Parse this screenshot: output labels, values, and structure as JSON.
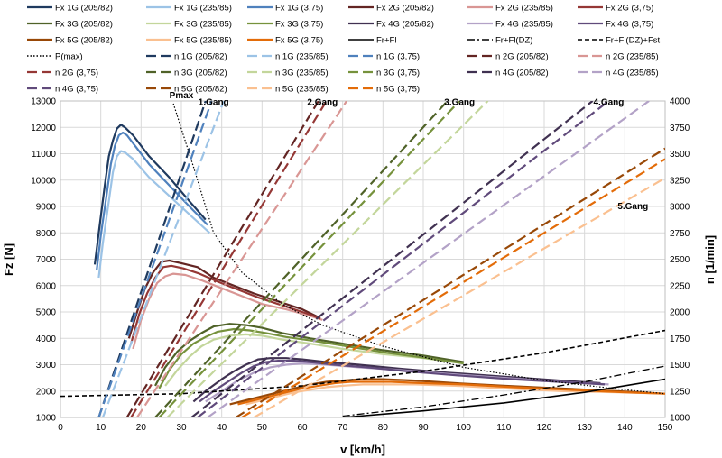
{
  "chart_data": {
    "type": "line",
    "title": "",
    "xlabel": "v [km/h]",
    "ylabel": "Fz [N]",
    "y2label": "n [1/min]",
    "xlim": [
      0,
      150
    ],
    "ylim": [
      1000,
      13000
    ],
    "y2lim": [
      1000,
      4000
    ],
    "xticks": [
      0,
      10,
      20,
      30,
      40,
      50,
      60,
      70,
      80,
      90,
      100,
      110,
      120,
      130,
      140,
      150
    ],
    "yticks": [
      1000,
      2000,
      3000,
      4000,
      5000,
      6000,
      7000,
      8000,
      9000,
      10000,
      11000,
      12000,
      13000
    ],
    "y2ticks": [
      1000,
      1250,
      1500,
      1750,
      2000,
      2250,
      2500,
      2750,
      3000,
      3250,
      3500,
      3750,
      4000
    ],
    "grid": true,
    "legend_position": "top",
    "annotations": [
      {
        "text": "Pmax",
        "x": 30,
        "y": 13100
      },
      {
        "text": "1.Gang",
        "x": 38,
        "y": 12850
      },
      {
        "text": "2.Gang",
        "x": 65,
        "y": 12850
      },
      {
        "text": "3.Gang",
        "x": 99,
        "y": 12850
      },
      {
        "text": "4.Gang",
        "x": 136,
        "y": 12850
      },
      {
        "text": "5.Gang",
        "x": 142,
        "y": 8900
      }
    ],
    "series": [
      {
        "name": "Fx 1G (205/82)",
        "axis": "left",
        "color": "#1f3a5f",
        "dash": "solid",
        "width": 2.2,
        "x": [
          8.5,
          9.5,
          11,
          12,
          13,
          14,
          15,
          16,
          18,
          22,
          27,
          32,
          36
        ],
        "y": [
          6800,
          8000,
          9800,
          10900,
          11500,
          11950,
          12100,
          12000,
          11700,
          10900,
          10100,
          9200,
          8500
        ]
      },
      {
        "name": "Fx 1G (235/85)",
        "axis": "left",
        "color": "#9cc3e6",
        "dash": "solid",
        "width": 2.2,
        "x": [
          9.5,
          10.5,
          12,
          13,
          14,
          15,
          16,
          18,
          22,
          27,
          32,
          37
        ],
        "y": [
          6300,
          7600,
          9200,
          10300,
          10900,
          11100,
          11050,
          10800,
          10100,
          9400,
          8700,
          8000
        ]
      },
      {
        "name": "Fx 1G (3,75)",
        "axis": "left",
        "color": "#4f81bd",
        "dash": "solid",
        "width": 2.2,
        "x": [
          9,
          10,
          11.5,
          12.5,
          13.5,
          14.5,
          15.5,
          16.5,
          18,
          22,
          27,
          32,
          36.5
        ],
        "y": [
          6600,
          7900,
          9500,
          10600,
          11300,
          11700,
          11800,
          11700,
          11400,
          10600,
          9800,
          9000,
          8300
        ]
      },
      {
        "name": "Fx 2G (205/82)",
        "axis": "left",
        "color": "#632523",
        "dash": "solid",
        "width": 2.2,
        "x": [
          17,
          19,
          21,
          23,
          25,
          27,
          30,
          34,
          38,
          43,
          48,
          54,
          60,
          64
        ],
        "y": [
          4000,
          5000,
          5900,
          6500,
          6900,
          6950,
          6850,
          6700,
          6300,
          6000,
          5700,
          5400,
          5100,
          4800
        ]
      },
      {
        "name": "Fx 2G (235/85)",
        "axis": "left",
        "color": "#d99694",
        "dash": "solid",
        "width": 2.2,
        "x": [
          18,
          20,
          22,
          24,
          26,
          28,
          31,
          35,
          40,
          45,
          50,
          56,
          62,
          65
        ],
        "y": [
          3600,
          4700,
          5500,
          6100,
          6350,
          6450,
          6400,
          6200,
          5900,
          5600,
          5300,
          5100,
          4850,
          4700
        ]
      },
      {
        "name": "Fx 2G (3,75)",
        "axis": "left",
        "color": "#953735",
        "dash": "solid",
        "width": 2.2,
        "x": [
          17.5,
          19.5,
          21.5,
          23.5,
          25.5,
          27.5,
          30.5,
          34.5,
          39,
          44,
          49,
          55,
          61,
          64.5
        ],
        "y": [
          3800,
          4900,
          5700,
          6300,
          6700,
          6750,
          6650,
          6450,
          6150,
          5850,
          5550,
          5250,
          4950,
          4750
        ]
      },
      {
        "name": "Fx 3G (205/82)",
        "axis": "left",
        "color": "#4f6228",
        "dash": "solid",
        "width": 2.2,
        "x": [
          23.5,
          26,
          29,
          32,
          35,
          38,
          42,
          46,
          50,
          55,
          62,
          70,
          80,
          90,
          100
        ],
        "y": [
          2200,
          2900,
          3500,
          3900,
          4200,
          4450,
          4550,
          4500,
          4400,
          4200,
          4000,
          3800,
          3550,
          3350,
          3100
        ]
      },
      {
        "name": "Fx 3G (235/85)",
        "axis": "left",
        "color": "#c3d69b",
        "dash": "solid",
        "width": 2.2,
        "x": [
          26,
          29,
          32,
          35,
          38,
          42,
          46,
          50,
          55,
          62,
          70,
          80,
          90,
          100
        ],
        "y": [
          2200,
          2800,
          3300,
          3700,
          3950,
          4100,
          4150,
          4100,
          3950,
          3800,
          3600,
          3400,
          3250,
          3050
        ]
      },
      {
        "name": "Fx 3G (3,75)",
        "axis": "left",
        "color": "#76923c",
        "dash": "solid",
        "width": 2.2,
        "x": [
          24.5,
          27,
          30,
          33,
          36,
          39,
          43,
          47,
          51,
          56,
          63,
          71,
          81,
          91,
          100
        ],
        "y": [
          2100,
          2800,
          3400,
          3800,
          4050,
          4250,
          4350,
          4300,
          4200,
          4050,
          3900,
          3700,
          3450,
          3250,
          3050
        ]
      },
      {
        "name": "Fx 4G (205/82)",
        "axis": "left",
        "color": "#403151",
        "dash": "solid",
        "width": 2.2,
        "x": [
          33,
          36,
          40,
          43,
          46,
          49,
          52,
          56,
          60,
          66,
          74,
          84,
          96,
          110,
          124,
          134
        ],
        "y": [
          1600,
          2000,
          2450,
          2750,
          3000,
          3200,
          3250,
          3250,
          3200,
          3100,
          3000,
          2850,
          2700,
          2550,
          2400,
          2300
        ]
      },
      {
        "name": "Fx 4G (235/85)",
        "axis": "left",
        "color": "#b3a2c7",
        "dash": "solid",
        "width": 2.2,
        "x": [
          36,
          40,
          44,
          48,
          52,
          56,
          60,
          66,
          74,
          84,
          96,
          110,
          124,
          136
        ],
        "y": [
          1600,
          2000,
          2400,
          2700,
          2900,
          3000,
          3050,
          3000,
          2900,
          2800,
          2650,
          2500,
          2350,
          2250
        ]
      },
      {
        "name": "Fx 4G (3,75)",
        "axis": "left",
        "color": "#604a7b",
        "dash": "solid",
        "width": 2.2,
        "x": [
          34.5,
          38,
          42,
          45,
          48,
          51,
          54,
          58,
          62,
          68,
          76,
          86,
          98,
          112,
          126,
          135
        ],
        "y": [
          1600,
          2000,
          2400,
          2700,
          2950,
          3100,
          3150,
          3150,
          3100,
          3000,
          2900,
          2750,
          2600,
          2450,
          2330,
          2250
        ]
      },
      {
        "name": "Fx 5G (205/82)",
        "axis": "left",
        "color": "#984807",
        "dash": "solid",
        "width": 2.2,
        "x": [
          42,
          46,
          50,
          54,
          58,
          62,
          66,
          70,
          75,
          80,
          88,
          98,
          110,
          124,
          138,
          150
        ],
        "y": [
          1500,
          1650,
          1800,
          1950,
          2100,
          2250,
          2350,
          2400,
          2450,
          2450,
          2400,
          2300,
          2200,
          2100,
          2000,
          1900
        ]
      },
      {
        "name": "Fx 5G (235/85)",
        "axis": "left",
        "color": "#fac090",
        "dash": "solid",
        "width": 2.2,
        "x": [
          46,
          50,
          54,
          58,
          62,
          66,
          70,
          75,
          80,
          88,
          98,
          110,
          124,
          138,
          150
        ],
        "y": [
          1500,
          1650,
          1800,
          1950,
          2050,
          2150,
          2200,
          2250,
          2250,
          2250,
          2200,
          2100,
          2000,
          1950,
          1900
        ]
      },
      {
        "name": "Fx 5G (3,75)",
        "axis": "left",
        "color": "#e36c09",
        "dash": "solid",
        "width": 2.2,
        "x": [
          44,
          48,
          52,
          56,
          60,
          64,
          68,
          72,
          77,
          82,
          90,
          100,
          112,
          126,
          140,
          150
        ],
        "y": [
          1500,
          1650,
          1800,
          1950,
          2100,
          2200,
          2300,
          2350,
          2350,
          2350,
          2300,
          2250,
          2150,
          2050,
          1950,
          1900
        ]
      },
      {
        "name": "Fr+Fl",
        "axis": "left",
        "color": "#000000",
        "dash": "solid",
        "width": 1.6,
        "x": [
          70,
          90,
          110,
          130,
          150
        ],
        "y": [
          1000,
          1250,
          1550,
          1950,
          2450
        ]
      },
      {
        "name": "Fr+Fl(DZ)",
        "axis": "left",
        "color": "#000000",
        "dash": "dashdot",
        "width": 1.3,
        "x": [
          70,
          90,
          110,
          130,
          150
        ],
        "y": [
          1050,
          1400,
          1850,
          2350,
          2950
        ]
      },
      {
        "name": "Fr+Fl(DZ)+Fst",
        "axis": "left",
        "color": "#000000",
        "dash": "dash",
        "width": 1.6,
        "x": [
          0,
          30,
          60,
          90,
          120,
          150
        ],
        "y": [
          1800,
          1900,
          2200,
          2750,
          3450,
          4300
        ]
      },
      {
        "name": "P(max)",
        "axis": "left",
        "color": "#000000",
        "dash": "dot",
        "width": 1.2,
        "x": [
          28,
          33,
          38,
          45,
          55,
          65,
          80,
          100,
          120,
          140,
          150
        ],
        "y": [
          12900,
          10500,
          8000,
          6500,
          5300,
          4500,
          3700,
          2900,
          2400,
          2050,
          1900
        ]
      },
      {
        "name": "n 1G (205/82)",
        "axis": "right",
        "color": "#1f3a5f",
        "dash": "longdash",
        "width": 2.2,
        "x": [
          9.5,
          36
        ],
        "y": [
          1000,
          4000
        ]
      },
      {
        "name": "n 1G (3,75)",
        "axis": "right",
        "color": "#4f81bd",
        "dash": "longdash",
        "width": 2.2,
        "x": [
          9.5,
          37.5
        ],
        "y": [
          1000,
          4000
        ]
      },
      {
        "name": "n 1G (235/85)",
        "axis": "right",
        "color": "#9cc3e6",
        "dash": "longdash",
        "width": 2.2,
        "x": [
          10.5,
          40.5
        ],
        "y": [
          1000,
          4000
        ]
      },
      {
        "name": "n 2G (205/82)",
        "axis": "right",
        "color": "#632523",
        "dash": "longdash",
        "width": 2.2,
        "x": [
          16.5,
          64
        ],
        "y": [
          1000,
          4000
        ]
      },
      {
        "name": "n 2G (3,75)",
        "axis": "right",
        "color": "#953735",
        "dash": "longdash",
        "width": 2.2,
        "x": [
          17.5,
          66
        ],
        "y": [
          1000,
          4000
        ]
      },
      {
        "name": "n 2G (235/85)",
        "axis": "right",
        "color": "#d99694",
        "dash": "longdash",
        "width": 2.2,
        "x": [
          19,
          71
        ],
        "y": [
          1000,
          4000
        ]
      },
      {
        "name": "n 3G (205/82)",
        "axis": "right",
        "color": "#4f6228",
        "dash": "longdash",
        "width": 2.2,
        "x": [
          23.5,
          96
        ],
        "y": [
          1000,
          4000
        ]
      },
      {
        "name": "n 3G (3,75)",
        "axis": "right",
        "color": "#76923c",
        "dash": "longdash",
        "width": 2.2,
        "x": [
          24.5,
          99
        ],
        "y": [
          1000,
          4000
        ]
      },
      {
        "name": "n 3G (235/85)",
        "axis": "right",
        "color": "#c3d69b",
        "dash": "longdash",
        "width": 2.2,
        "x": [
          26.5,
          106
        ],
        "y": [
          1000,
          4000
        ]
      },
      {
        "name": "n 4G (205/82)",
        "axis": "right",
        "color": "#403151",
        "dash": "longdash",
        "width": 2.2,
        "x": [
          32.5,
          132
        ],
        "y": [
          1000,
          4000
        ]
      },
      {
        "name": "n 4G (3,75)",
        "axis": "right",
        "color": "#604a7b",
        "dash": "longdash",
        "width": 2.2,
        "x": [
          34,
          136
        ],
        "y": [
          1000,
          4000
        ]
      },
      {
        "name": "n 4G (235/85)",
        "axis": "right",
        "color": "#b3a2c7",
        "dash": "longdash",
        "width": 2.2,
        "x": [
          36.5,
          146
        ],
        "y": [
          1000,
          4000
        ]
      },
      {
        "name": "n 5G (205/82)",
        "axis": "right",
        "color": "#984807",
        "dash": "longdash",
        "width": 2.2,
        "x": [
          43.5,
          150
        ],
        "y": [
          1000,
          3550
        ]
      },
      {
        "name": "n 5G (3,75)",
        "axis": "right",
        "color": "#e36c09",
        "dash": "longdash",
        "width": 2.2,
        "x": [
          45,
          150
        ],
        "y": [
          1000,
          3450
        ]
      },
      {
        "name": "n 5G (235/85)",
        "axis": "right",
        "color": "#fac090",
        "dash": "longdash",
        "width": 2.2,
        "x": [
          48,
          150
        ],
        "y": [
          1000,
          3270
        ]
      }
    ],
    "legend_order": [
      "Fx 1G (205/82)",
      "Fx 1G (235/85)",
      "Fx 1G (3,75)",
      "Fx 2G (205/82)",
      "Fx 2G (235/85)",
      "Fx 2G (3,75)",
      "Fx 3G (205/82)",
      "Fx 3G (235/85)",
      "Fx 3G (3,75)",
      "Fx 4G (205/82)",
      "Fx 4G (235/85)",
      "Fx 4G (3,75)",
      "Fx 5G (205/82)",
      "Fx 5G (235/85)",
      "Fx 5G (3,75)",
      "Fr+Fl",
      "Fr+Fl(DZ)",
      "Fr+Fl(DZ)+Fst",
      "P(max)",
      "n 1G (205/82)",
      "n 1G (235/85)",
      "n 1G (3,75)",
      "n 2G (205/82)",
      "n 2G (235/85)",
      "n 2G (3,75)",
      "n 3G (205/82)",
      "n 3G (235/85)",
      "n 3G (3,75)",
      "n 4G (205/82)",
      "n 4G (235/85)",
      "n 4G (3,75)",
      "n 5G (205/82)",
      "n 5G (235/85)",
      "n 5G (3,75)"
    ]
  }
}
